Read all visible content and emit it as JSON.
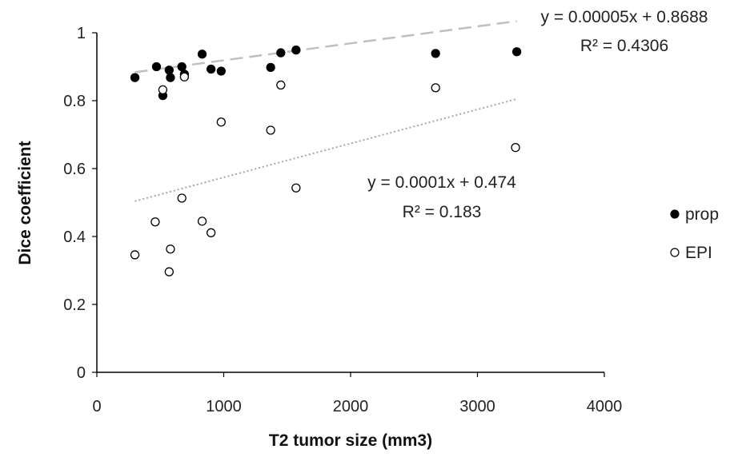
{
  "chart_data": {
    "type": "scatter",
    "title": "",
    "xlabel": "T2 tumor size (mm3)",
    "ylabel": "Dice coefficient",
    "xlim": [
      0,
      4000
    ],
    "ylim": [
      0,
      1
    ],
    "x_ticks": [
      "0",
      "1000",
      "2000",
      "3000",
      "4000"
    ],
    "y_ticks": [
      "0",
      "0.2",
      "0.4",
      "0.6",
      "0.8",
      "1"
    ],
    "grid": false,
    "legend_position": "right",
    "series": [
      {
        "name": "prop",
        "marker": "filled-circle",
        "color": "#000000",
        "points": [
          {
            "x": 300,
            "y": 0.868
          },
          {
            "x": 470,
            "y": 0.9
          },
          {
            "x": 520,
            "y": 0.815
          },
          {
            "x": 570,
            "y": 0.89
          },
          {
            "x": 580,
            "y": 0.868
          },
          {
            "x": 670,
            "y": 0.9
          },
          {
            "x": 690,
            "y": 0.878
          },
          {
            "x": 830,
            "y": 0.937
          },
          {
            "x": 900,
            "y": 0.893
          },
          {
            "x": 980,
            "y": 0.887
          },
          {
            "x": 1370,
            "y": 0.898
          },
          {
            "x": 1450,
            "y": 0.941
          },
          {
            "x": 1570,
            "y": 0.949
          },
          {
            "x": 2670,
            "y": 0.939
          },
          {
            "x": 3310,
            "y": 0.944
          }
        ],
        "trendline": {
          "style": "dashed",
          "color": "#bfbfbf",
          "slope": 5e-05,
          "intercept": 0.8688,
          "x_range": [
            300,
            3310
          ],
          "equation": "y = 0.00005x + 0.8688",
          "r2": "R² = 0.4306"
        }
      },
      {
        "name": "EPI",
        "marker": "open-circle",
        "color": "#000000",
        "points": [
          {
            "x": 300,
            "y": 0.346
          },
          {
            "x": 460,
            "y": 0.443
          },
          {
            "x": 520,
            "y": 0.832
          },
          {
            "x": 570,
            "y": 0.296
          },
          {
            "x": 580,
            "y": 0.363
          },
          {
            "x": 670,
            "y": 0.513
          },
          {
            "x": 690,
            "y": 0.87
          },
          {
            "x": 830,
            "y": 0.445
          },
          {
            "x": 900,
            "y": 0.411
          },
          {
            "x": 980,
            "y": 0.737
          },
          {
            "x": 1370,
            "y": 0.713
          },
          {
            "x": 1450,
            "y": 0.846
          },
          {
            "x": 1570,
            "y": 0.543
          },
          {
            "x": 2670,
            "y": 0.838
          },
          {
            "x": 3300,
            "y": 0.662
          }
        ],
        "trendline": {
          "style": "dotted",
          "color": "#a6a6a6",
          "slope": 0.0001,
          "intercept": 0.474,
          "x_range": [
            300,
            3310
          ],
          "equation": "y = 0.0001x + 0.474",
          "r2": "R² = 0.183"
        }
      }
    ]
  }
}
